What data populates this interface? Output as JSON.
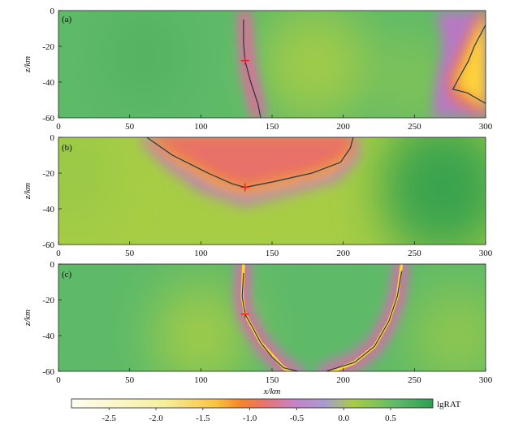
{
  "chart_data": [
    {
      "type": "heatmap",
      "panel_label": "(a)",
      "ylabel": "z/km",
      "xticks": [
        "0",
        "50",
        "100",
        "150",
        "200",
        "250",
        "300"
      ],
      "yticks": [
        "0",
        "-20",
        "-40",
        "-60"
      ],
      "xlim": [
        0,
        300
      ],
      "ylim": [
        -60,
        0
      ],
      "marker": {
        "x": 131,
        "y": -28
      },
      "curves": [
        [
          [
            130,
            -5
          ],
          [
            130,
            -18
          ],
          [
            131,
            -28
          ],
          [
            135,
            -40
          ],
          [
            140,
            -52
          ],
          [
            142,
            -60
          ]
        ],
        [
          [
            300,
            -8
          ],
          [
            292,
            -20
          ],
          [
            288,
            -28
          ],
          [
            281,
            -38
          ],
          [
            277,
            -44
          ],
          [
            287,
            -46
          ],
          [
            300,
            -52
          ]
        ]
      ]
    },
    {
      "type": "heatmap",
      "panel_label": "(b)",
      "ylabel": "z/km",
      "xticks": [
        "0",
        "50",
        "100",
        "150",
        "200",
        "250",
        "300"
      ],
      "yticks": [
        "0",
        "-20",
        "-40",
        "-60"
      ],
      "xlim": [
        0,
        300
      ],
      "ylim": [
        -60,
        0
      ],
      "marker": {
        "x": 131,
        "y": -28
      },
      "curves": [
        [
          [
            62,
            0
          ],
          [
            80,
            -10
          ],
          [
            105,
            -20
          ],
          [
            122,
            -26
          ],
          [
            131,
            -28
          ],
          [
            150,
            -25
          ],
          [
            178,
            -20
          ],
          [
            198,
            -14
          ],
          [
            205,
            -6
          ],
          [
            207,
            0
          ]
        ]
      ]
    },
    {
      "type": "heatmap",
      "panel_label": "(c)",
      "ylabel": "z/km",
      "xlabel": "x/km",
      "xticks": [
        "0",
        "50",
        "100",
        "150",
        "200",
        "250",
        "300"
      ],
      "yticks": [
        "0",
        "-20",
        "-40",
        "-60"
      ],
      "xlim": [
        0,
        300
      ],
      "ylim": [
        -60,
        0
      ],
      "marker": {
        "x": 131,
        "y": -28
      },
      "curves": [
        [
          [
            130,
            -5
          ],
          [
            129,
            -18
          ],
          [
            131,
            -28
          ],
          [
            136,
            -35
          ],
          [
            142,
            -44
          ],
          [
            150,
            -52
          ],
          [
            158,
            -58
          ],
          [
            168,
            -60
          ]
        ],
        [
          [
            188,
            -60
          ],
          [
            208,
            -55
          ],
          [
            222,
            -46
          ],
          [
            232,
            -32
          ],
          [
            238,
            -18
          ],
          [
            241,
            -4
          ]
        ]
      ]
    }
  ],
  "colorbar": {
    "ticks": [
      "-2.5",
      "-2.0",
      "-1.5",
      "-1.0",
      "-0.5",
      "0.0",
      "0.5"
    ],
    "label": "lgRAT",
    "range": [
      -2.9,
      0.95
    ]
  },
  "colors": {
    "background": "#5eba68",
    "bright_green": "#2f9e4f",
    "yellow_green": "#a7cd45",
    "purple": "#b779c4",
    "salmon": "#e8716a",
    "orange": "#f08a2b",
    "yellow": "#ffd23a",
    "cream": "#fffbe0",
    "curve": "#1b3a4a",
    "marker": "#e0202a"
  }
}
